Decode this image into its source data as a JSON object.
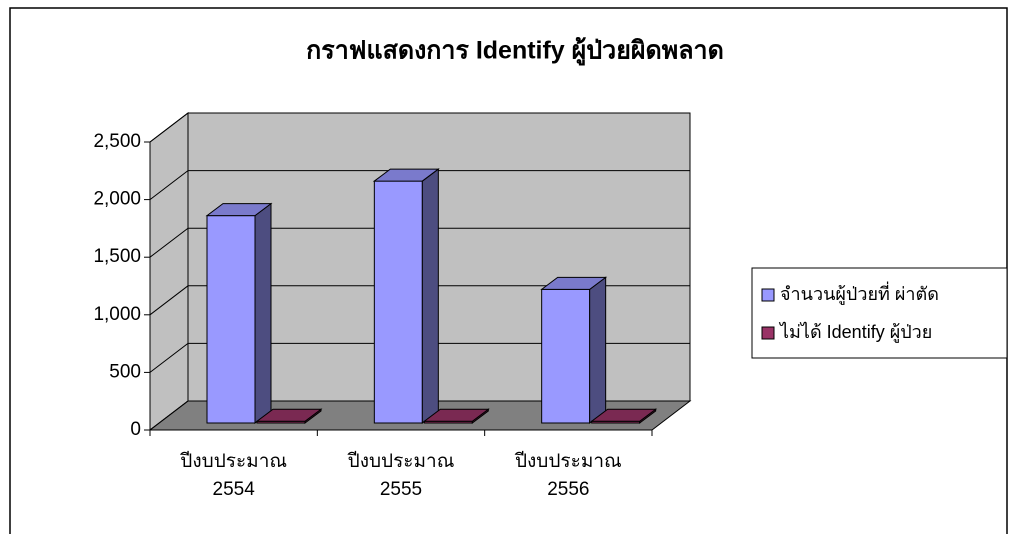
{
  "chart_data": {
    "type": "bar3d",
    "title": "กราฟแสดงการ Identify ผู้ป่วยผิดพลาด",
    "categories": [
      "ปีงบประมาณ 2554",
      "ปีงบประมาณ 2555",
      "ปีงบประมาณ 2556"
    ],
    "series": [
      {
        "name": "จำนวนผู้ป่วยที่ ผ่าตัด",
        "color": "#9999ff",
        "values": [
          1800,
          2100,
          1160
        ]
      },
      {
        "name": "ไม่ได้ Identify ผู้ป่วย",
        "color": "#993366",
        "values": [
          15,
          15,
          15
        ]
      }
    ],
    "ylim": [
      0,
      2500
    ],
    "yticks": [
      0,
      500,
      {
        "value": 1000,
        "label": "1,000"
      },
      {
        "value": 1500,
        "label": "1,500"
      },
      {
        "value": 2000,
        "label": "2,000"
      },
      {
        "value": 2500,
        "label": "2,500"
      }
    ],
    "grid": true,
    "legend": "right"
  }
}
